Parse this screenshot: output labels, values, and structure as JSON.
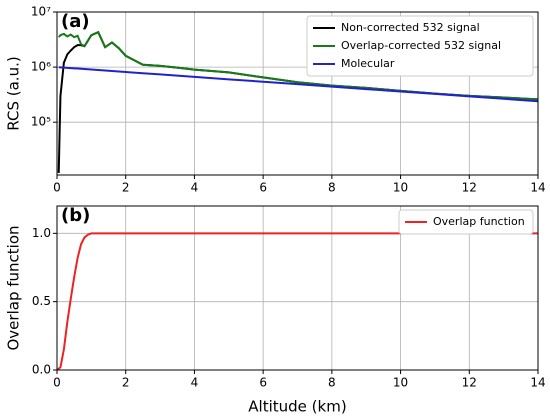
{
  "chart_data": [
    {
      "type": "line",
      "annotation": "(a)",
      "ylabel": "RCS (a.u.)",
      "log_y": true,
      "grid": true,
      "legend": "upper right",
      "x": [
        0.05,
        0.1,
        0.2,
        0.3,
        0.4,
        0.5,
        0.6,
        0.7,
        0.8,
        1.0,
        1.2,
        1.4,
        1.6,
        1.8,
        2.0,
        2.5,
        3,
        3.5,
        4,
        5,
        6,
        7,
        8,
        9,
        10,
        11,
        12,
        13,
        14
      ],
      "series": [
        {
          "name": "Non-corrected 532 signal",
          "color": "#000000",
          "values": [
            12000,
            300000,
            1200000,
            1700000,
            2000000,
            2300000,
            2500000,
            2500000,
            2400000,
            3800000,
            4300000,
            2300000,
            2800000,
            2200000,
            1600000,
            1100000,
            1050000,
            980000,
            900000,
            800000,
            650000,
            530000,
            460000,
            420000,
            370000,
            330000,
            300000,
            280000,
            260000
          ]
        },
        {
          "name": "Overlap-corrected 532 signal",
          "color": "#1a7a1a",
          "values": [
            3500000,
            3800000,
            4000000,
            3600000,
            3900000,
            3500000,
            3700000,
            2600000,
            2400000,
            3800000,
            4300000,
            2300000,
            2800000,
            2200000,
            1600000,
            1100000,
            1050000,
            980000,
            900000,
            800000,
            650000,
            530000,
            460000,
            420000,
            370000,
            330000,
            300000,
            280000,
            260000
          ]
        },
        {
          "name": "Molecular",
          "color": "#2222cc",
          "values": [
            995000,
            990000,
            980000,
            970000,
            960000,
            950000,
            941000,
            931000,
            922000,
            903000,
            885000,
            867000,
            850000,
            832000,
            815000,
            775000,
            736000,
            700000,
            665000,
            600000,
            542000,
            490000,
            442000,
            399000,
            361000,
            326000,
            294000,
            266000,
            240000
          ]
        }
      ],
      "xlim": [
        0,
        14
      ],
      "xticks": [
        0,
        2,
        4,
        6,
        8,
        10,
        12,
        14
      ],
      "ylim": [
        11000,
        10000000
      ],
      "yticks": [
        {
          "value": 100000,
          "label": "10⁵"
        },
        {
          "value": 1000000,
          "label": "10⁶"
        },
        {
          "value": 10000000,
          "label": "10⁷"
        }
      ]
    },
    {
      "type": "line",
      "annotation": "(b)",
      "xlabel": "Altitude (km)",
      "ylabel": "Overlap function",
      "log_y": false,
      "grid": true,
      "legend": "upper right",
      "x": [
        0,
        0.1,
        0.2,
        0.3,
        0.4,
        0.5,
        0.6,
        0.7,
        0.8,
        0.9,
        1.0,
        1.2,
        14
      ],
      "series": [
        {
          "name": "Overlap function",
          "color": "#ee2222",
          "values": [
            0,
            0.02,
            0.15,
            0.35,
            0.52,
            0.68,
            0.82,
            0.92,
            0.97,
            0.99,
            1,
            1,
            1
          ]
        }
      ],
      "xlim": [
        0,
        14
      ],
      "xticks": [
        0,
        2,
        4,
        6,
        8,
        10,
        12,
        14
      ],
      "ylim": [
        0,
        1.2
      ],
      "yticks": [
        {
          "value": 0,
          "label": "0.0"
        },
        {
          "value": 0.5,
          "label": "0.5"
        },
        {
          "value": 1,
          "label": "1.0"
        }
      ]
    }
  ]
}
